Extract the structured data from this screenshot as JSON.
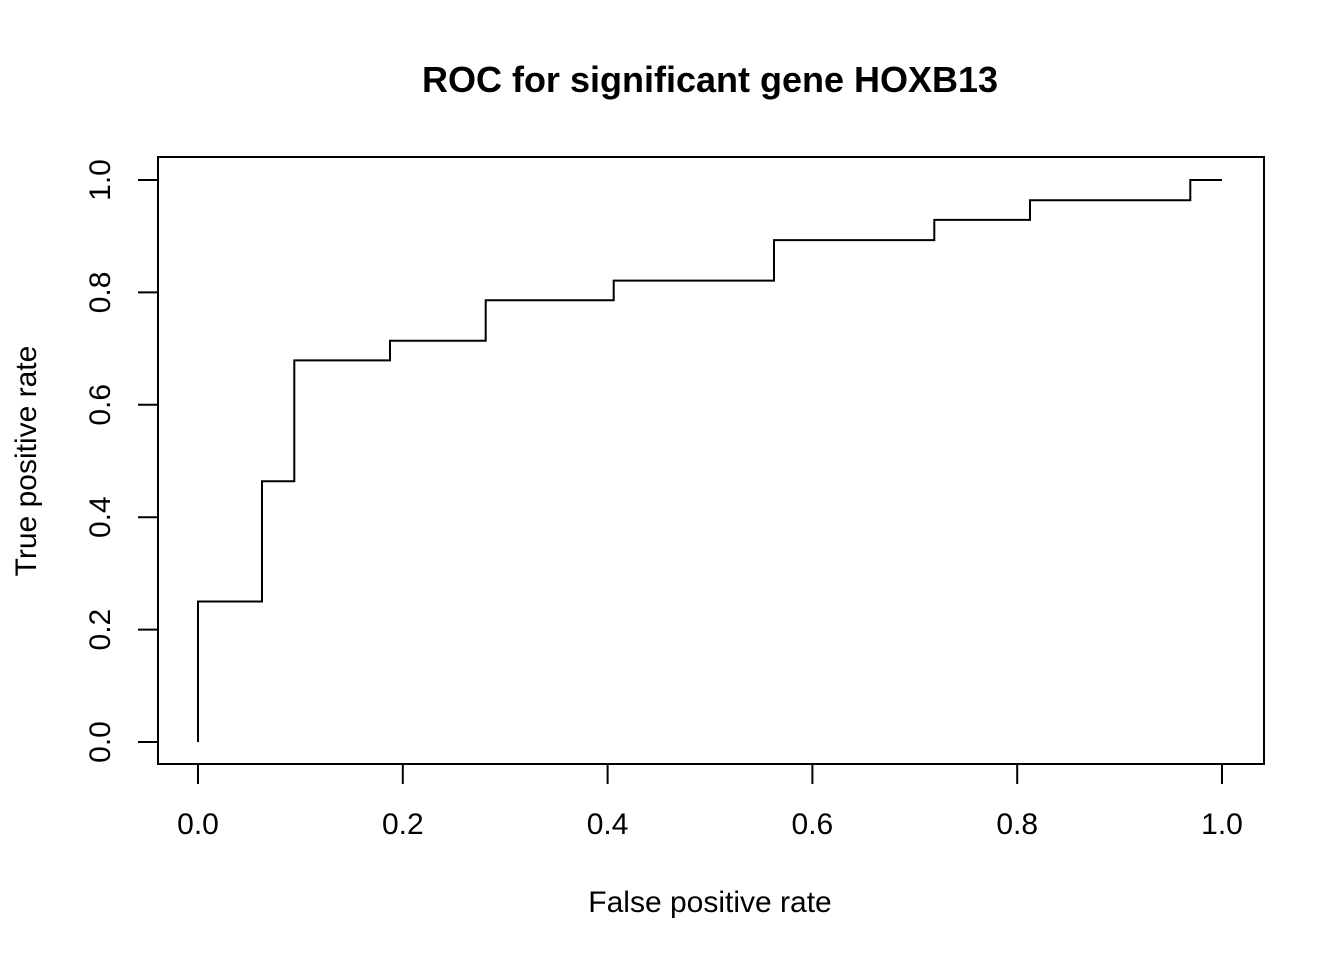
{
  "chart_data": {
    "type": "line",
    "step": true,
    "title": "ROC for significant gene HOXB13",
    "xlabel": "False positive rate",
    "ylabel": "True positive rate",
    "xlim": [
      0.0,
      1.0
    ],
    "ylim": [
      0.0,
      1.0
    ],
    "x_ticks": [
      "0.0",
      "0.2",
      "0.4",
      "0.6",
      "0.8",
      "1.0"
    ],
    "y_ticks": [
      "0.0",
      "0.2",
      "0.4",
      "0.6",
      "0.8",
      "1.0"
    ],
    "grid": false,
    "legend": "none",
    "line_color": "#000000",
    "series": [
      {
        "x": [
          0.0,
          0.0,
          0.0625,
          0.0625,
          0.094,
          0.094,
          0.1875,
          0.1875,
          0.281,
          0.281,
          0.406,
          0.406,
          0.5625,
          0.5625,
          0.719,
          0.719,
          0.8125,
          0.8125,
          0.969,
          0.969,
          1.0
        ],
        "y": [
          0.0,
          0.25,
          0.25,
          0.464,
          0.464,
          0.679,
          0.679,
          0.714,
          0.714,
          0.786,
          0.786,
          0.821,
          0.821,
          0.893,
          0.893,
          0.929,
          0.929,
          0.964,
          0.964,
          1.0,
          1.0
        ]
      }
    ]
  }
}
